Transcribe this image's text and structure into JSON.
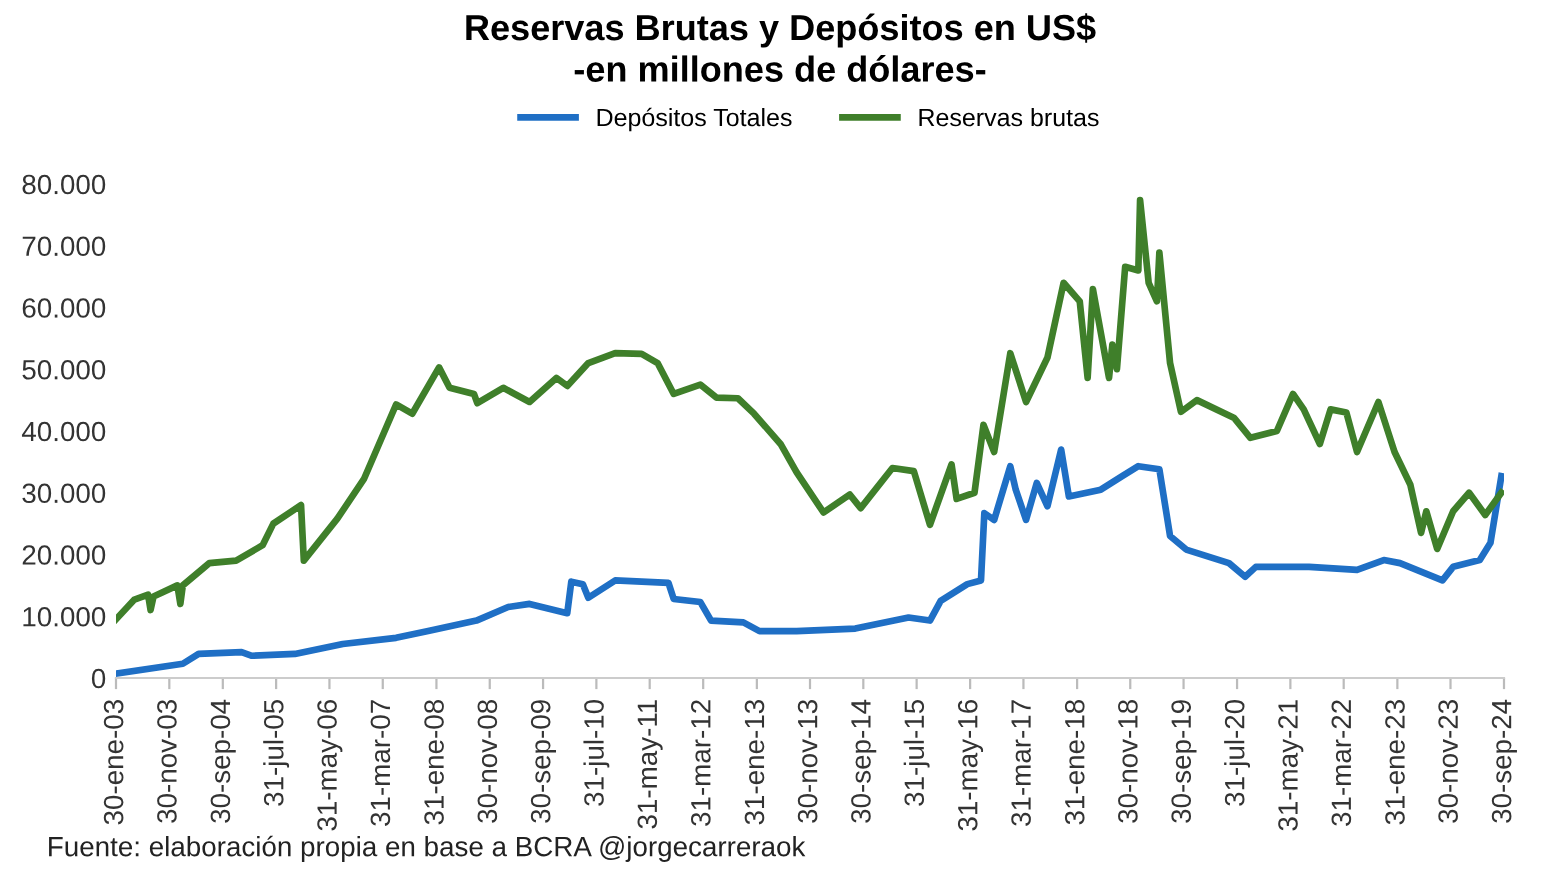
{
  "chart_data": {
    "type": "line",
    "title": "Reservas Brutas y Depósitos en US$\n-en millones de dólares-",
    "xlim": [
      "2003-01-30",
      "2024-09-30"
    ],
    "xticks": [
      {
        "value": "2003-01-30",
        "label": "30-ene-03"
      },
      {
        "value": "2003-11-30",
        "label": "30-nov-03"
      },
      {
        "value": "2004-09-30",
        "label": "30-sep-04"
      },
      {
        "value": "2005-07-31",
        "label": "31-jul-05"
      },
      {
        "value": "2006-05-31",
        "label": "31-may-06"
      },
      {
        "value": "2007-03-31",
        "label": "31-mar-07"
      },
      {
        "value": "2008-01-31",
        "label": "31-ene-08"
      },
      {
        "value": "2008-11-30",
        "label": "30-nov-08"
      },
      {
        "value": "2009-09-30",
        "label": "30-sep-09"
      },
      {
        "value": "2010-07-31",
        "label": "31-jul-10"
      },
      {
        "value": "2011-05-31",
        "label": "31-may-11"
      },
      {
        "value": "2012-03-31",
        "label": "31-mar-12"
      },
      {
        "value": "2013-01-31",
        "label": "31-ene-13"
      },
      {
        "value": "2013-11-30",
        "label": "30-nov-13"
      },
      {
        "value": "2014-09-30",
        "label": "30-sep-14"
      },
      {
        "value": "2015-07-31",
        "label": "31-jul-15"
      },
      {
        "value": "2016-05-31",
        "label": "31-may-16"
      },
      {
        "value": "2017-03-31",
        "label": "31-mar-17"
      },
      {
        "value": "2018-01-31",
        "label": "31-ene-18"
      },
      {
        "value": "2018-11-30",
        "label": "30-nov-18"
      },
      {
        "value": "2019-09-30",
        "label": "30-sep-19"
      },
      {
        "value": "2020-07-31",
        "label": "31-jul-20"
      },
      {
        "value": "2021-05-31",
        "label": "31-may-21"
      },
      {
        "value": "2022-03-31",
        "label": "31-mar-22"
      },
      {
        "value": "2023-01-31",
        "label": "31-ene-23"
      },
      {
        "value": "2023-11-30",
        "label": "30-nov-23"
      },
      {
        "value": "2024-09-30",
        "label": "30-sep-24"
      }
    ],
    "ylim": [
      0,
      80000
    ],
    "yticks": [
      {
        "value": 0,
        "label": "0"
      },
      {
        "value": 10000,
        "label": "10.000"
      },
      {
        "value": 20000,
        "label": "20.000"
      },
      {
        "value": 30000,
        "label": "30.000"
      },
      {
        "value": 40000,
        "label": "40.000"
      },
      {
        "value": 50000,
        "label": "50.000"
      },
      {
        "value": 60000,
        "label": "60.000"
      },
      {
        "value": 70000,
        "label": "70.000"
      },
      {
        "value": 80000,
        "label": "80.000"
      }
    ],
    "grid": false,
    "legend": "top",
    "marker": "none",
    "line_style": "solid",
    "series": [
      {
        "name": "Depósitos Totales",
        "color": "#1f6fc5",
        "x": [
          "2003-01-30",
          "2004-02-15",
          "2004-05-15",
          "2005-01-15",
          "2005-03-15",
          "2005-11-15",
          "2006-08-15",
          "2007-06-15",
          "2007-12-15",
          "2008-09-15",
          "2009-03-15",
          "2009-07-15",
          "2010-02-15",
          "2010-03-10",
          "2010-05-15",
          "2010-06-15",
          "2010-11-15",
          "2011-09-15",
          "2011-10-15",
          "2012-03-15",
          "2012-05-15",
          "2012-11-15",
          "2013-02-15",
          "2013-09-15",
          "2014-08-15",
          "2015-06-15",
          "2015-10-15",
          "2015-12-15",
          "2016-05-15",
          "2016-08-01",
          "2016-08-20",
          "2016-10-15",
          "2017-01-15",
          "2017-02-15",
          "2017-04-15",
          "2017-06-15",
          "2017-08-15",
          "2017-11-01",
          "2017-12-15",
          "2018-06-15",
          "2018-10-15",
          "2019-01-15",
          "2019-05-15",
          "2019-07-15",
          "2019-10-15",
          "2020-06-15",
          "2020-09-15",
          "2020-11-15",
          "2021-09-15",
          "2022-06-15",
          "2022-11-15",
          "2023-02-15",
          "2023-10-15",
          "2023-12-15",
          "2024-05-15",
          "2024-07-15",
          "2024-09-15"
        ],
        "values": [
          700,
          2300,
          3900,
          4200,
          3600,
          3900,
          5500,
          6500,
          7600,
          9300,
          11500,
          12000,
          10500,
          15600,
          15200,
          13000,
          15800,
          15400,
          12800,
          12300,
          9300,
          9000,
          7600,
          7600,
          8000,
          9800,
          9300,
          12500,
          15200,
          15800,
          26700,
          25600,
          34300,
          30500,
          25600,
          31600,
          27800,
          37000,
          29400,
          30500,
          32700,
          34300,
          33800,
          23000,
          20800,
          18600,
          16400,
          18000,
          18000,
          17500,
          19100,
          18600,
          15800,
          18000,
          19100,
          21900,
          32700
        ]
      },
      {
        "name": "Reservas brutas",
        "color": "#3f7f2a",
        "x": [
          "2003-01-30",
          "2003-05-15",
          "2003-08-01",
          "2003-08-15",
          "2003-09-01",
          "2004-01-15",
          "2004-02-01",
          "2004-02-15",
          "2004-07-15",
          "2004-12-15",
          "2005-05-15",
          "2005-07-15",
          "2005-12-20",
          "2006-01-05",
          "2006-07-15",
          "2006-12-15",
          "2007-06-15",
          "2007-09-15",
          "2008-02-15",
          "2008-04-15",
          "2008-09-01",
          "2008-09-20",
          "2009-02-15",
          "2009-07-15",
          "2009-12-15",
          "2010-02-15",
          "2010-06-15",
          "2010-11-15",
          "2011-04-15",
          "2011-07-15",
          "2011-10-15",
          "2012-03-15",
          "2012-06-15",
          "2012-10-15",
          "2013-01-15",
          "2013-06-15",
          "2013-09-15",
          "2014-02-15",
          "2014-07-15",
          "2014-09-15",
          "2015-03-15",
          "2015-07-15",
          "2015-10-15",
          "2016-02-15",
          "2016-03-15",
          "2016-06-25",
          "2016-08-15",
          "2016-10-15",
          "2017-01-15",
          "2017-04-15",
          "2017-08-15",
          "2017-11-15",
          "2018-02-15",
          "2018-04-01",
          "2018-05-01",
          "2018-08-01",
          "2018-08-20",
          "2018-09-15",
          "2018-11-01",
          "2019-01-15",
          "2019-01-25",
          "2019-03-15",
          "2019-05-01",
          "2019-05-15",
          "2019-07-15",
          "2019-09-15",
          "2019-12-15",
          "2020-07-15",
          "2020-10-15",
          "2021-03-15",
          "2021-06-15",
          "2021-08-15",
          "2021-11-15",
          "2022-01-15",
          "2022-04-15",
          "2022-06-15",
          "2022-10-15",
          "2023-01-15",
          "2023-04-15",
          "2023-06-15",
          "2023-07-15",
          "2023-09-15",
          "2023-12-15",
          "2024-03-15",
          "2024-06-15",
          "2024-09-15"
        ],
        "values": [
          9500,
          12700,
          13500,
          11000,
          13200,
          15000,
          12000,
          15000,
          18600,
          19000,
          21500,
          25000,
          28000,
          19000,
          25800,
          32300,
          44300,
          42800,
          50300,
          47000,
          46000,
          44500,
          47000,
          44700,
          48600,
          47300,
          51000,
          52600,
          52500,
          51000,
          46000,
          47500,
          45400,
          45300,
          42800,
          37900,
          33300,
          26800,
          29700,
          27500,
          34000,
          33500,
          24800,
          34600,
          29000,
          30000,
          41000,
          36600,
          52600,
          44700,
          51900,
          64000,
          61000,
          48600,
          63000,
          48600,
          54000,
          50000,
          66600,
          66000,
          77400,
          64000,
          61000,
          68900,
          51000,
          43100,
          45000,
          42100,
          38900,
          40000,
          46000,
          43500,
          37900,
          43500,
          43000,
          36600,
          44700,
          36600,
          31300,
          23500,
          27000,
          20900,
          27000,
          30000,
          26400,
          30000
        ]
      }
    ],
    "annotations": [
      "Fuente: elaboración propia en base a BCRA @jorgecarreraok"
    ]
  }
}
